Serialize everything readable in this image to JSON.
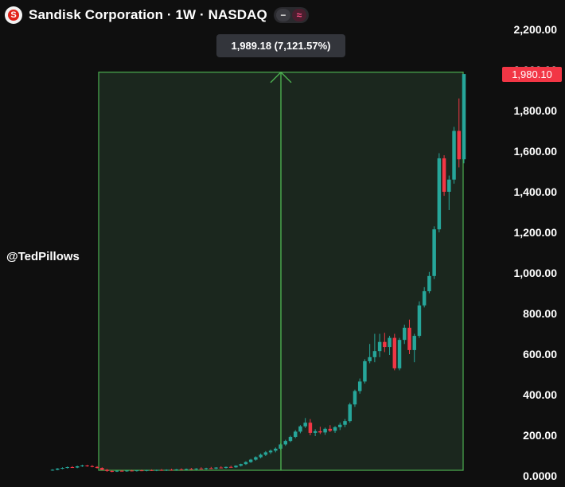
{
  "header": {
    "title": "Sandisk Corporation · 1W · NASDAQ",
    "logo_letter": "S",
    "minus_icon": "minus-icon",
    "wave_icon": "wave-icon",
    "minus_glyph": "−",
    "wave_glyph": "≈"
  },
  "measure_tooltip": "1,989.18 (7,121.57%)",
  "watermark": "@TedPillows",
  "last_price": "1,980.10",
  "colors": {
    "up": "#26a69a",
    "down": "#f23645",
    "measure_line": "#4caf50",
    "measure_fill": "#1b271e",
    "badge": "#f23645",
    "background": "#0f0f0f"
  },
  "chart_data": {
    "type": "candlestick",
    "title": "Sandisk Corporation · 1W · NASDAQ",
    "y_ticks": [
      "2,200.00",
      "2,000.00",
      "1,800.00",
      "1,600.00",
      "1,400.00",
      "1,200.00",
      "1,000.00",
      "800.00",
      "600.00",
      "400.00",
      "200.00",
      "0.0000"
    ],
    "ylim": [
      0,
      2200
    ],
    "grid": false,
    "measure_range": {
      "from": 0,
      "to": 1989.18,
      "label": "1,989.18 (7,121.57%)"
    },
    "candles": [
      {
        "o": 28,
        "h": 33,
        "l": 25,
        "c": 30
      },
      {
        "o": 30,
        "h": 38,
        "l": 28,
        "c": 36
      },
      {
        "o": 36,
        "h": 42,
        "l": 33,
        "c": 39
      },
      {
        "o": 39,
        "h": 46,
        "l": 36,
        "c": 43
      },
      {
        "o": 43,
        "h": 48,
        "l": 39,
        "c": 41
      },
      {
        "o": 41,
        "h": 50,
        "l": 38,
        "c": 47
      },
      {
        "o": 47,
        "h": 55,
        "l": 44,
        "c": 51
      },
      {
        "o": 51,
        "h": 54,
        "l": 45,
        "c": 48
      },
      {
        "o": 48,
        "h": 53,
        "l": 42,
        "c": 44
      },
      {
        "o": 44,
        "h": 48,
        "l": 36,
        "c": 39
      },
      {
        "o": 39,
        "h": 42,
        "l": 28,
        "c": 30
      },
      {
        "o": 30,
        "h": 34,
        "l": 20,
        "c": 24
      },
      {
        "o": 24,
        "h": 28,
        "l": 18,
        "c": 22
      },
      {
        "o": 22,
        "h": 27,
        "l": 19,
        "c": 25
      },
      {
        "o": 25,
        "h": 29,
        "l": 21,
        "c": 23
      },
      {
        "o": 23,
        "h": 28,
        "l": 20,
        "c": 26
      },
      {
        "o": 26,
        "h": 30,
        "l": 22,
        "c": 24
      },
      {
        "o": 24,
        "h": 29,
        "l": 21,
        "c": 27
      },
      {
        "o": 27,
        "h": 31,
        "l": 23,
        "c": 25
      },
      {
        "o": 25,
        "h": 30,
        "l": 22,
        "c": 28
      },
      {
        "o": 28,
        "h": 32,
        "l": 24,
        "c": 26
      },
      {
        "o": 26,
        "h": 31,
        "l": 23,
        "c": 29
      },
      {
        "o": 29,
        "h": 34,
        "l": 25,
        "c": 27
      },
      {
        "o": 27,
        "h": 32,
        "l": 24,
        "c": 30
      },
      {
        "o": 30,
        "h": 35,
        "l": 26,
        "c": 28
      },
      {
        "o": 28,
        "h": 34,
        "l": 25,
        "c": 32
      },
      {
        "o": 32,
        "h": 37,
        "l": 28,
        "c": 30
      },
      {
        "o": 30,
        "h": 36,
        "l": 27,
        "c": 34
      },
      {
        "o": 34,
        "h": 39,
        "l": 30,
        "c": 32
      },
      {
        "o": 32,
        "h": 38,
        "l": 29,
        "c": 36
      },
      {
        "o": 36,
        "h": 42,
        "l": 32,
        "c": 34
      },
      {
        "o": 34,
        "h": 40,
        "l": 31,
        "c": 38
      },
      {
        "o": 38,
        "h": 44,
        "l": 34,
        "c": 36
      },
      {
        "o": 36,
        "h": 43,
        "l": 33,
        "c": 41
      },
      {
        "o": 41,
        "h": 47,
        "l": 37,
        "c": 39
      },
      {
        "o": 39,
        "h": 46,
        "l": 36,
        "c": 44
      },
      {
        "o": 44,
        "h": 50,
        "l": 40,
        "c": 42
      },
      {
        "o": 42,
        "h": 52,
        "l": 40,
        "c": 50
      },
      {
        "o": 50,
        "h": 60,
        "l": 46,
        "c": 58
      },
      {
        "o": 58,
        "h": 72,
        "l": 54,
        "c": 68
      },
      {
        "o": 68,
        "h": 84,
        "l": 64,
        "c": 80
      },
      {
        "o": 80,
        "h": 96,
        "l": 75,
        "c": 92
      },
      {
        "o": 92,
        "h": 110,
        "l": 86,
        "c": 104
      },
      {
        "o": 104,
        "h": 122,
        "l": 98,
        "c": 116
      },
      {
        "o": 116,
        "h": 130,
        "l": 108,
        "c": 124
      },
      {
        "o": 124,
        "h": 140,
        "l": 116,
        "c": 134
      },
      {
        "o": 134,
        "h": 160,
        "l": 128,
        "c": 155
      },
      {
        "o": 155,
        "h": 178,
        "l": 148,
        "c": 172
      },
      {
        "o": 172,
        "h": 198,
        "l": 166,
        "c": 192
      },
      {
        "o": 192,
        "h": 225,
        "l": 186,
        "c": 218
      },
      {
        "o": 218,
        "h": 250,
        "l": 210,
        "c": 244
      },
      {
        "o": 244,
        "h": 285,
        "l": 236,
        "c": 262
      },
      {
        "o": 262,
        "h": 280,
        "l": 200,
        "c": 212
      },
      {
        "o": 212,
        "h": 230,
        "l": 196,
        "c": 220
      },
      {
        "o": 220,
        "h": 242,
        "l": 206,
        "c": 214
      },
      {
        "o": 214,
        "h": 238,
        "l": 202,
        "c": 232
      },
      {
        "o": 232,
        "h": 250,
        "l": 216,
        "c": 222
      },
      {
        "o": 222,
        "h": 245,
        "l": 212,
        "c": 240
      },
      {
        "o": 240,
        "h": 262,
        "l": 226,
        "c": 252
      },
      {
        "o": 252,
        "h": 280,
        "l": 240,
        "c": 270
      },
      {
        "o": 270,
        "h": 360,
        "l": 262,
        "c": 352
      },
      {
        "o": 352,
        "h": 425,
        "l": 340,
        "c": 418
      },
      {
        "o": 418,
        "h": 480,
        "l": 405,
        "c": 465
      },
      {
        "o": 465,
        "h": 575,
        "l": 455,
        "c": 565
      },
      {
        "o": 565,
        "h": 650,
        "l": 555,
        "c": 585
      },
      {
        "o": 585,
        "h": 700,
        "l": 560,
        "c": 615
      },
      {
        "o": 615,
        "h": 700,
        "l": 585,
        "c": 660
      },
      {
        "o": 660,
        "h": 705,
        "l": 610,
        "c": 635
      },
      {
        "o": 635,
        "h": 690,
        "l": 596,
        "c": 680
      },
      {
        "o": 680,
        "h": 700,
        "l": 520,
        "c": 530
      },
      {
        "o": 530,
        "h": 680,
        "l": 520,
        "c": 670
      },
      {
        "o": 670,
        "h": 745,
        "l": 650,
        "c": 730
      },
      {
        "o": 730,
        "h": 770,
        "l": 600,
        "c": 620
      },
      {
        "o": 620,
        "h": 700,
        "l": 560,
        "c": 690
      },
      {
        "o": 690,
        "h": 860,
        "l": 680,
        "c": 840
      },
      {
        "o": 840,
        "h": 930,
        "l": 830,
        "c": 910
      },
      {
        "o": 910,
        "h": 1005,
        "l": 900,
        "c": 985
      },
      {
        "o": 985,
        "h": 1230,
        "l": 970,
        "c": 1215
      },
      {
        "o": 1215,
        "h": 1590,
        "l": 1200,
        "c": 1565
      },
      {
        "o": 1565,
        "h": 1580,
        "l": 1380,
        "c": 1400
      },
      {
        "o": 1400,
        "h": 1480,
        "l": 1310,
        "c": 1460
      },
      {
        "o": 1460,
        "h": 1720,
        "l": 1440,
        "c": 1700
      },
      {
        "o": 1700,
        "h": 1860,
        "l": 1520,
        "c": 1560
      },
      {
        "o": 1560,
        "h": 1965,
        "l": 1540,
        "c": 1980.1
      }
    ]
  }
}
